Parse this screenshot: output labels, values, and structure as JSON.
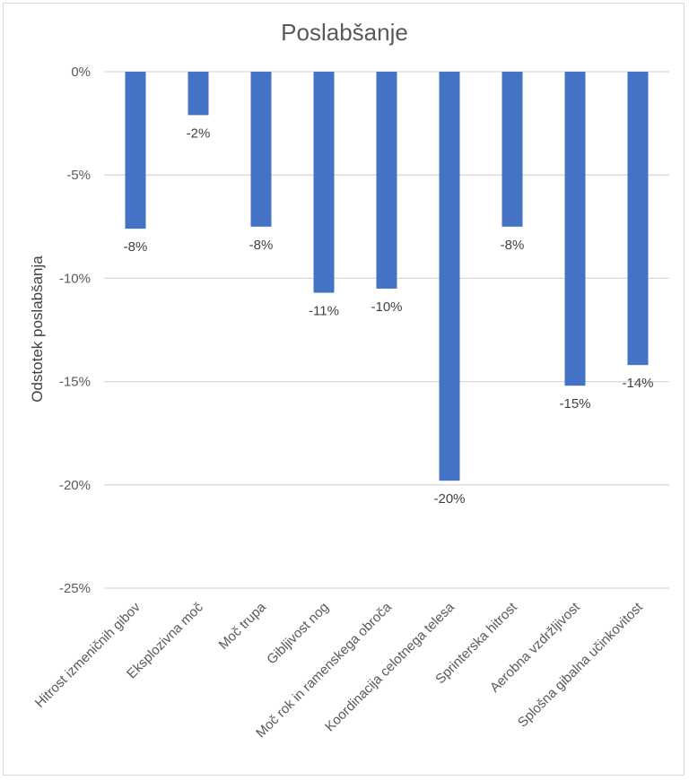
{
  "chart_data": {
    "type": "bar",
    "title": "Poslabšanje",
    "xlabel": "",
    "ylabel": "Odstotek poslabšanja",
    "ylim": [
      -25,
      0
    ],
    "yticks": [
      0,
      -5,
      -10,
      -15,
      -20,
      -25
    ],
    "ytick_labels": [
      "0%",
      "-5%",
      "-10%",
      "-15%",
      "-20%",
      "-25%"
    ],
    "grid": true,
    "legend": "none",
    "bar_color": "#4472C4",
    "categories": [
      "Hitrost izmeničnih gibov",
      "Eksplozivna moč",
      "Moč trupa",
      "Gibljivost nog",
      "Moč rok in ramenskega obroča",
      "Koordinacija celotnega telesa",
      "Sprinterska hitrost",
      "Aerobna vzdržljivost",
      "Splošna gibalna učinkovitost"
    ],
    "values": [
      -7.6,
      -2.1,
      -7.5,
      -10.7,
      -10.5,
      -19.8,
      -7.5,
      -15.2,
      -14.2
    ],
    "data_labels": [
      "-8%",
      "-2%",
      "-8%",
      "-11%",
      "-10%",
      "-20%",
      "-8%",
      "-15%",
      "-14%"
    ]
  }
}
